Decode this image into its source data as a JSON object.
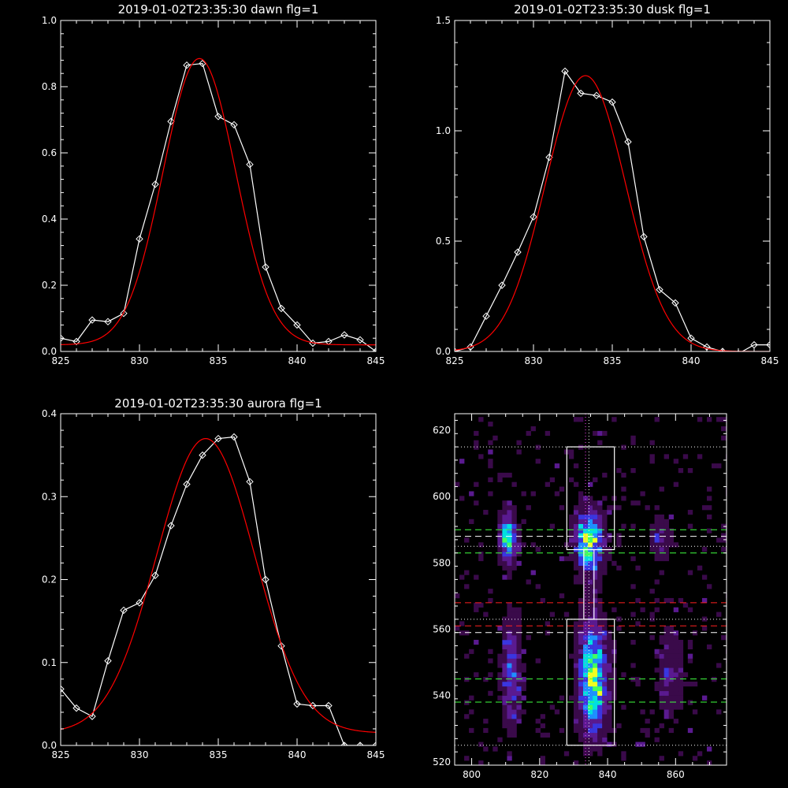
{
  "chart_data": [
    {
      "type": "line",
      "title": "2019-01-02T23:35:30 dawn flg=1",
      "xlim": [
        825,
        845
      ],
      "ylim": [
        0,
        1.0
      ],
      "xticks": [
        825,
        830,
        835,
        840,
        845
      ],
      "xtick_labels": [
        "825",
        "830",
        "835",
        "840",
        "845"
      ],
      "yticks": [
        0,
        0.2,
        0.4,
        0.6,
        0.8,
        1.0
      ],
      "ytick_labels": [
        "0.0",
        "0.2",
        "0.4",
        "0.6",
        "0.8",
        "1.0"
      ],
      "series": [
        {
          "color": "#ffffff",
          "markers": "diamond",
          "x": [
            825,
            826,
            827,
            828,
            829,
            830,
            831,
            832,
            833,
            834,
            835,
            836,
            837,
            838,
            839,
            840,
            841,
            842,
            843,
            844,
            845
          ],
          "y": [
            0.04,
            0.03,
            0.095,
            0.09,
            0.115,
            0.34,
            0.505,
            0.695,
            0.865,
            0.87,
            0.71,
            0.685,
            0.565,
            0.255,
            0.13,
            0.08,
            0.025,
            0.03,
            0.05,
            0.035,
            0.0
          ]
        },
        {
          "color": "#ff0000",
          "type": "gaussian",
          "amplitude": 0.865,
          "center": 833.8,
          "sigma": 2.3,
          "offset": 0.02
        }
      ]
    },
    {
      "type": "line",
      "title": "2019-01-02T23:35:30 dusk flg=1",
      "xlim": [
        825,
        845
      ],
      "ylim": [
        0,
        1.5
      ],
      "xticks": [
        825,
        830,
        835,
        840,
        845
      ],
      "xtick_labels": [
        "825",
        "830",
        "835",
        "840",
        "845"
      ],
      "yticks": [
        0,
        0.5,
        1.0,
        1.5
      ],
      "ytick_labels": [
        "0.0",
        "0.5",
        "1.0",
        "1.5"
      ],
      "series": [
        {
          "color": "#ffffff",
          "markers": "diamond",
          "x": [
            825,
            826,
            827,
            828,
            829,
            830,
            831,
            832,
            833,
            834,
            835,
            836,
            837,
            838,
            839,
            840,
            841,
            842,
            843,
            844,
            845
          ],
          "y": [
            0.0,
            0.02,
            0.16,
            0.3,
            0.45,
            0.61,
            0.88,
            1.27,
            1.17,
            1.16,
            1.13,
            0.95,
            0.52,
            0.28,
            0.22,
            0.06,
            0.02,
            0.0,
            -0.01,
            0.03,
            0.03
          ]
        },
        {
          "color": "#ff0000",
          "type": "gaussian",
          "amplitude": 1.25,
          "center": 833.3,
          "sigma": 2.55,
          "offset": 0.0
        }
      ]
    },
    {
      "type": "line",
      "title": "2019-01-02T23:35:30 aurora flg=1",
      "xlim": [
        825,
        845
      ],
      "ylim": [
        0,
        0.4
      ],
      "xticks": [
        825,
        830,
        835,
        840,
        845
      ],
      "xtick_labels": [
        "825",
        "830",
        "835",
        "840",
        "845"
      ],
      "yticks": [
        0,
        0.1,
        0.2,
        0.3,
        0.4
      ],
      "ytick_labels": [
        "0.0",
        "0.1",
        "0.2",
        "0.3",
        "0.4"
      ],
      "series": [
        {
          "color": "#ffffff",
          "markers": "diamond",
          "x": [
            825,
            826,
            827,
            828,
            829,
            830,
            831,
            832,
            833,
            834,
            835,
            836,
            837,
            838,
            839,
            840,
            841,
            842,
            843,
            844,
            845
          ],
          "y": [
            0.068,
            0.045,
            0.035,
            0.102,
            0.163,
            0.172,
            0.205,
            0.265,
            0.315,
            0.35,
            0.37,
            0.372,
            0.318,
            0.2,
            0.12,
            0.05,
            0.048,
            0.048,
            0.0,
            0.0,
            0.0
          ]
        },
        {
          "color": "#ff0000",
          "type": "gaussian",
          "amplitude": 0.355,
          "center": 834.2,
          "sigma": 3.1,
          "offset": 0.015
        }
      ]
    },
    {
      "type": "heatmap",
      "title": "",
      "xlim": [
        795,
        875
      ],
      "ylim": [
        519,
        625
      ],
      "xticks": [
        800,
        820,
        840,
        860
      ],
      "xtick_labels": [
        "800",
        "820",
        "840",
        "860"
      ],
      "yticks": [
        520,
        540,
        560,
        580,
        600,
        620
      ],
      "ytick_labels": [
        "520",
        "540",
        "560",
        "580",
        "600",
        "620"
      ],
      "colormap": [
        "#000000",
        "#3a0a4a",
        "#5a1a90",
        "#3a36e0",
        "#1e90ff",
        "#00e0e0",
        "#40ff60",
        "#f0ff20"
      ],
      "blobs": [
        {
          "x": 810,
          "y": 587,
          "sx": 1.6,
          "sy": 5,
          "peak": 0.8
        },
        {
          "x": 834,
          "y": 586,
          "sx": 2.6,
          "sy": 6,
          "peak": 0.95
        },
        {
          "x": 855,
          "y": 587,
          "sx": 2.2,
          "sy": 4,
          "peak": 0.3
        },
        {
          "x": 811,
          "y": 546,
          "sx": 1.8,
          "sy": 10,
          "peak": 0.5
        },
        {
          "x": 835,
          "y": 545,
          "sx": 2.8,
          "sy": 11,
          "peak": 0.95
        },
        {
          "x": 858,
          "y": 546,
          "sx": 2.5,
          "sy": 9,
          "peak": 0.25
        }
      ],
      "boxes": [
        {
          "x0": 828,
          "x1": 842,
          "y0": 584,
          "y1": 615,
          "color": "#ffffff"
        },
        {
          "x0": 828,
          "x1": 842,
          "y0": 525,
          "y1": 563,
          "color": "#ffffff"
        },
        {
          "x0": 833,
          "x1": 836,
          "y0": 563,
          "y1": 584,
          "color": "#ffffff"
        }
      ],
      "hlines": [
        {
          "y": 615,
          "color": "#ffffff",
          "style": "dotted"
        },
        {
          "y": 590,
          "color": "#40ff40",
          "style": "dashed"
        },
        {
          "y": 588,
          "color": "#ffffff",
          "style": "dashed"
        },
        {
          "y": 585,
          "color": "#ffffff",
          "style": "dotted"
        },
        {
          "y": 583,
          "color": "#40ff40",
          "style": "dashed"
        },
        {
          "y": 568,
          "color": "#ff2020",
          "style": "dashed"
        },
        {
          "y": 563,
          "color": "#ffffff",
          "style": "dotted"
        },
        {
          "y": 561,
          "color": "#ff2020",
          "style": "dashed"
        },
        {
          "y": 559,
          "color": "#ffffff",
          "style": "dashed"
        },
        {
          "y": 545,
          "color": "#40ff40",
          "style": "dashed"
        },
        {
          "y": 538,
          "color": "#40ff40",
          "style": "dashed"
        },
        {
          "y": 525,
          "color": "#ffffff",
          "style": "dotted"
        }
      ],
      "vlines": [
        {
          "x": 833.5,
          "color": "#ff40ff",
          "style": "dotted"
        },
        {
          "x": 834.5,
          "color": "#ffffff",
          "style": "dotted"
        }
      ]
    }
  ]
}
